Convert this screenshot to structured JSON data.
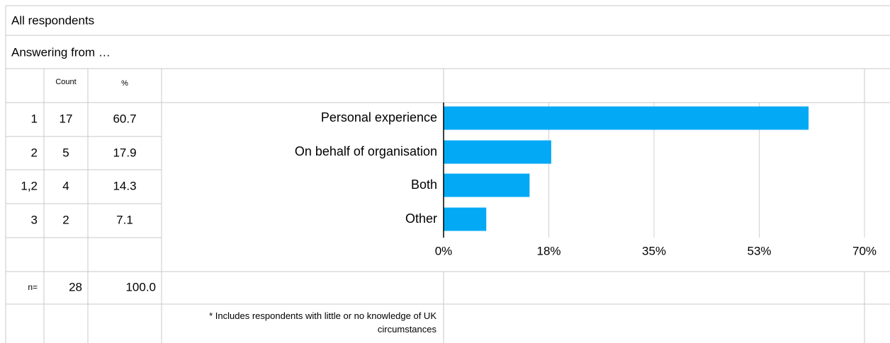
{
  "header": {
    "title": "All respondents",
    "subtitle": "Answering from …"
  },
  "table": {
    "columns": [
      "Count",
      "%"
    ],
    "rows": [
      [
        "1",
        "17",
        "60.7"
      ],
      [
        "2",
        "5",
        "17.9"
      ],
      [
        "1,2",
        "4",
        "14.3"
      ],
      [
        "3",
        "2",
        "7.1"
      ]
    ],
    "total": [
      "n=",
      "28",
      "100.0"
    ]
  },
  "footnote": "* Includes respondents with little or no knowledge of UK circumstances",
  "chart_data": {
    "type": "hbar",
    "categories": [
      "Personal experience",
      "On behalf of organisation",
      "Both",
      "Other"
    ],
    "values": [
      60.7,
      17.9,
      14.3,
      7.1
    ],
    "color": "#03a9f4",
    "xlim": [
      0,
      70
    ],
    "xticks": [
      {
        "value": 0,
        "label": "0%"
      },
      {
        "value": 17.5,
        "label": "18%"
      },
      {
        "value": 35,
        "label": "35%"
      },
      {
        "value": 52.5,
        "label": "53%"
      },
      {
        "value": 70,
        "label": "70%"
      }
    ],
    "grid": true
  }
}
